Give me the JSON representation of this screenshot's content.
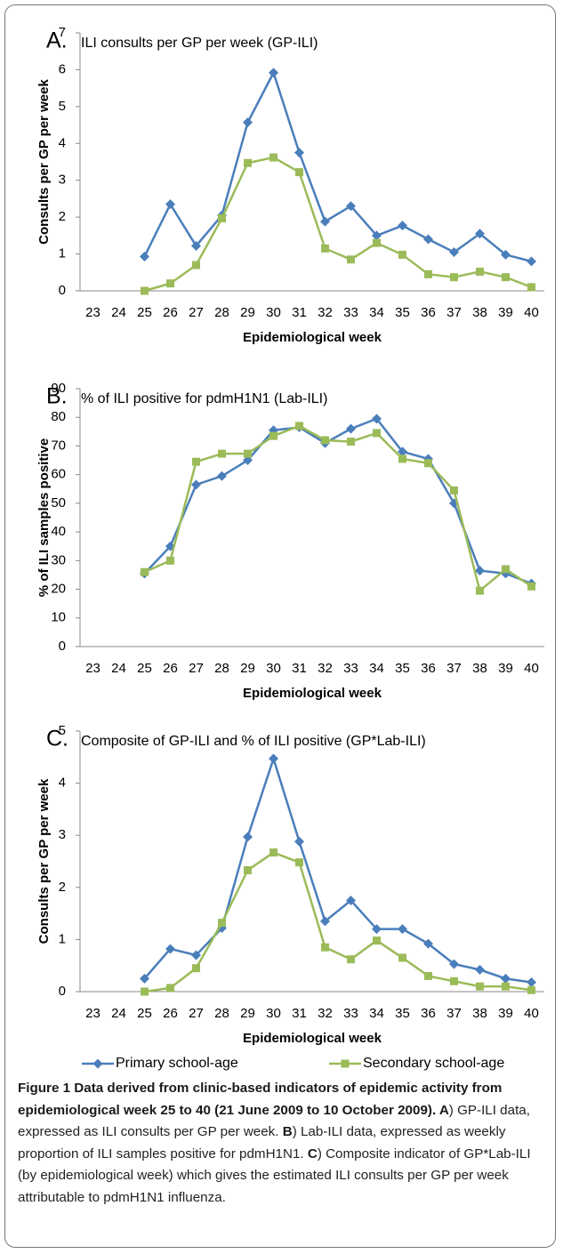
{
  "chart_data": [
    {
      "type": "line",
      "panel": "A.",
      "title": "ILI consults per GP per week (GP-ILI)",
      "x_label": "Epidemiological week",
      "y_label": "Consults per GP per week",
      "categories": [
        "23",
        "24",
        "25",
        "26",
        "27",
        "28",
        "29",
        "30",
        "31",
        "32",
        "33",
        "34",
        "35",
        "36",
        "37",
        "38",
        "39",
        "40"
      ],
      "ylim": [
        0,
        7
      ],
      "yticks": [
        0,
        1,
        2,
        3,
        4,
        5,
        6,
        7
      ],
      "series": [
        {
          "name": "Primary school-age",
          "color": "#4a7ebb",
          "marker": "diamond",
          "values": [
            null,
            null,
            0.93,
            2.35,
            1.22,
            2.05,
            4.57,
            5.92,
            3.75,
            1.88,
            2.3,
            1.5,
            1.77,
            1.4,
            1.05,
            1.55,
            0.98,
            0.8
          ]
        },
        {
          "name": "Secondary school-age",
          "color": "#9bbb59",
          "marker": "square",
          "values": [
            null,
            null,
            0,
            0.2,
            0.7,
            1.97,
            3.47,
            3.62,
            3.22,
            1.15,
            0.85,
            1.3,
            0.98,
            0.45,
            0.37,
            0.52,
            0.37,
            0.1
          ]
        }
      ]
    },
    {
      "type": "line",
      "panel": "B.",
      "title": "% of ILI positive for pdmH1N1 (Lab-ILI)",
      "x_label": "Epidemiological week",
      "y_label": "% of ILI samples positive",
      "categories": [
        "23",
        "24",
        "25",
        "26",
        "27",
        "28",
        "29",
        "30",
        "31",
        "32",
        "33",
        "34",
        "35",
        "36",
        "37",
        "38",
        "39",
        "40"
      ],
      "ylim": [
        0,
        90
      ],
      "yticks": [
        0,
        10,
        20,
        30,
        40,
        50,
        60,
        70,
        80,
        90
      ],
      "series": [
        {
          "name": "Primary school-age",
          "color": "#4a7ebb",
          "marker": "diamond",
          "values": [
            null,
            null,
            25.5,
            35,
            56.5,
            59.5,
            65,
            75.5,
            76.5,
            71,
            76,
            79.5,
            68,
            65.5,
            50,
            26.5,
            25.5,
            22
          ]
        },
        {
          "name": "Secondary school-age",
          "color": "#9bbb59",
          "marker": "square",
          "values": [
            null,
            null,
            26,
            30,
            64.5,
            67.3,
            67.3,
            73.5,
            77,
            72,
            71.5,
            74.5,
            65.5,
            64,
            54.5,
            19.5,
            27,
            21
          ]
        }
      ]
    },
    {
      "type": "line",
      "panel": "C.",
      "title": "Composite of GP-ILI and % of ILI positive (GP*Lab-ILI)",
      "x_label": "Epidemiological week",
      "y_label": "Consults per GP per week",
      "categories": [
        "23",
        "24",
        "25",
        "26",
        "27",
        "28",
        "29",
        "30",
        "31",
        "32",
        "33",
        "34",
        "35",
        "36",
        "37",
        "38",
        "39",
        "40"
      ],
      "ylim": [
        0,
        5
      ],
      "yticks": [
        0,
        1,
        2,
        3,
        4,
        5
      ],
      "series": [
        {
          "name": "Primary school-age",
          "color": "#4a7ebb",
          "marker": "diamond",
          "values": [
            null,
            null,
            0.25,
            0.82,
            0.7,
            1.22,
            2.97,
            4.47,
            2.88,
            1.35,
            1.75,
            1.2,
            1.2,
            0.92,
            0.53,
            0.42,
            0.25,
            0.18
          ]
        },
        {
          "name": "Secondary school-age",
          "color": "#9bbb59",
          "marker": "square",
          "values": [
            null,
            null,
            0,
            0.07,
            0.45,
            1.32,
            2.33,
            2.67,
            2.48,
            0.85,
            0.62,
            0.98,
            0.65,
            0.3,
            0.2,
            0.1,
            0.1,
            0.03
          ]
        }
      ]
    }
  ],
  "caption": [
    {
      "text": "Figure 1 Data derived from clinic-based indicators of epidemic activity from epidemiological week 25 to 40 (21 June 2009 to 10 October 2009). ",
      "bold": true
    },
    {
      "text": "A",
      "bold": true
    },
    {
      "text": ") GP-ILI data, expressed as ILI consults per GP per week. ",
      "bold": false
    },
    {
      "text": "B",
      "bold": true
    },
    {
      "text": ") Lab-ILI data, expressed as weekly proportion of ILI samples positive for pdmH1N1. ",
      "bold": false
    },
    {
      "text": "C",
      "bold": true
    },
    {
      "text": ") Composite indicator of GP*Lab-ILI (by epidemiological week) which gives the estimated ILI consults per GP per week attributable to pdmH1N1 influenza.",
      "bold": false
    }
  ]
}
